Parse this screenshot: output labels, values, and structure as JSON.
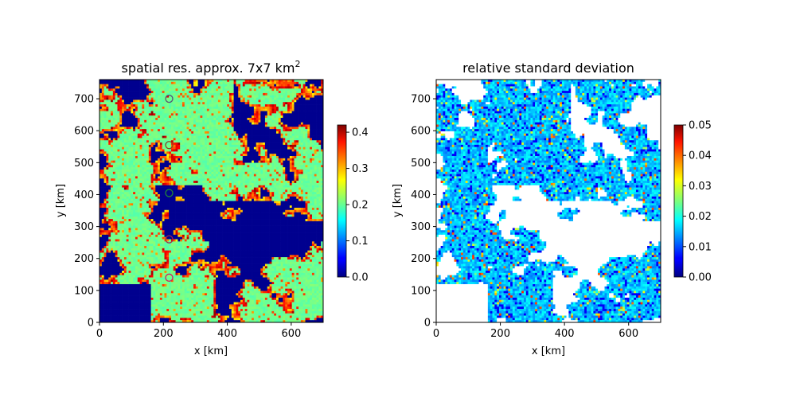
{
  "chart_data": [
    {
      "type": "heatmap",
      "title": "spatial res. approx. 7x7 km",
      "title_superscript": "2",
      "xlabel": "x [km]",
      "ylabel": "y [km]",
      "xlim": [
        0,
        700
      ],
      "ylim": [
        0,
        760
      ],
      "xticks": [
        "0",
        "200",
        "400",
        "600"
      ],
      "yticks": [
        "0",
        "100",
        "200",
        "300",
        "400",
        "500",
        "600",
        "700"
      ],
      "grid": false,
      "colorbar": {
        "colormap": "jet",
        "range": [
          0.0,
          0.42
        ],
        "ticks": [
          "0.0",
          "0.1",
          "0.2",
          "0.3",
          "0.4"
        ]
      },
      "markers": [
        {
          "x": 218,
          "y": 700,
          "color": "#555577"
        },
        {
          "x": 218,
          "y": 555,
          "color": "#884422"
        },
        {
          "x": 218,
          "y": 405,
          "color": "#228833"
        },
        {
          "x": 218,
          "y": 260,
          "color": "#aa2244"
        },
        {
          "x": 218,
          "y": 140,
          "color": "#cc2266"
        }
      ]
    },
    {
      "type": "heatmap",
      "title": "relative standard deviation",
      "xlabel": "x [km]",
      "ylabel": "y [km]",
      "xlim": [
        0,
        700
      ],
      "ylim": [
        0,
        760
      ],
      "xticks": [
        "0",
        "200",
        "400",
        "600"
      ],
      "yticks": [
        "0",
        "100",
        "200",
        "300",
        "400",
        "500",
        "600",
        "700"
      ],
      "grid": false,
      "colorbar": {
        "colormap": "jet",
        "range": [
          0.0,
          0.05
        ],
        "ticks": [
          "0.00",
          "0.01",
          "0.02",
          "0.03",
          "0.04",
          "0.05"
        ]
      }
    }
  ]
}
